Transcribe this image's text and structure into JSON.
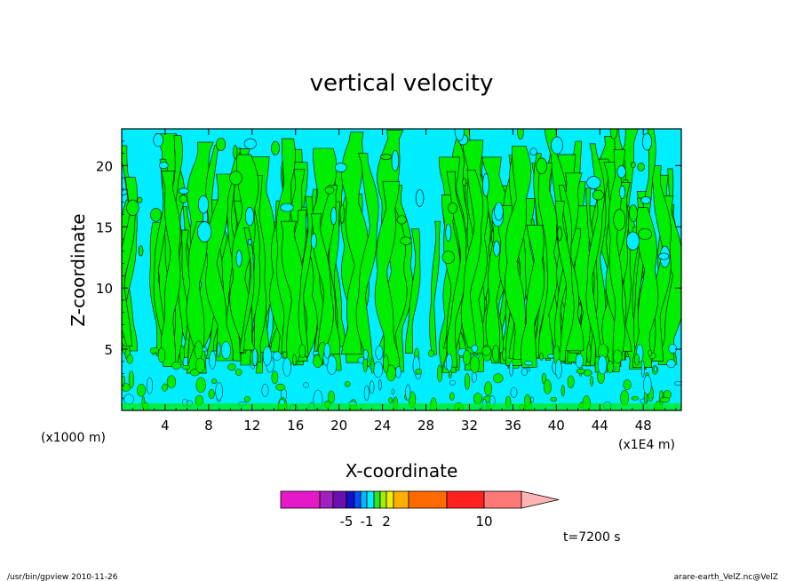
{
  "chart_data": {
    "type": "heatmap",
    "title": "vertical velocity",
    "xlabel": "X-coordinate",
    "ylabel": "Z-coordinate",
    "x_unit_left": "(x1000 m)",
    "x_unit_right": "(x1E4 m)",
    "xlim": [
      0,
      51.5
    ],
    "ylim": [
      0,
      23
    ],
    "x_ticks": [
      4,
      8,
      12,
      16,
      20,
      24,
      28,
      32,
      36,
      40,
      44,
      48
    ],
    "y_ticks": [
      5,
      10,
      15,
      20
    ],
    "colorbar": {
      "colors": [
        "#e619c8",
        "#a020c0",
        "#6a0fb0",
        "#1010c8",
        "#0050ff",
        "#00b8ff",
        "#00f0ff",
        "#29e629",
        "#a0f000",
        "#f0f000",
        "#ffb000",
        "#ff6a00",
        "#ff2020",
        "#ff7878",
        "#ffb4b4"
      ],
      "labels": [
        {
          "after_segment": 2,
          "text": "-5"
        },
        {
          "after_segment": 5,
          "text": "-1"
        },
        {
          "after_segment": 8,
          "text": "2"
        },
        {
          "after_segment": 12,
          "text": "10"
        }
      ]
    },
    "time_label": "t=7200 s",
    "field_colors": {
      "positive": "#00ee00",
      "negative": "#00eeff"
    }
  },
  "footer": {
    "left": "/usr/bin/gpview   2010-11-26",
    "right": "arare-earth_VelZ.nc@VelZ"
  }
}
